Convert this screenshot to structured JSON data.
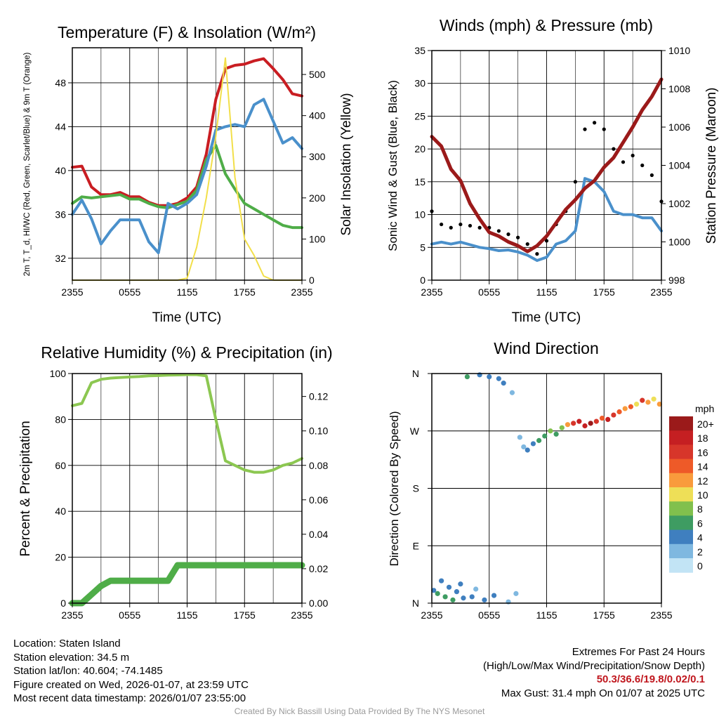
{
  "chart_data": [
    {
      "type": "line",
      "title": "Temperature (F) & Insolation (W/m²)",
      "xlabel": "Time (UTC)",
      "ylabel_left": "2m T, T_d, HI/WC (Red, Green, Scarlet/Blue) & 9m T (Orange)",
      "ylabel_right": "Solar Insolation (Yellow)",
      "x_ticks": [
        "2355",
        "0555",
        "1155",
        "1755",
        "2355"
      ],
      "y_left_ticks": [
        32,
        36,
        40,
        44,
        48
      ],
      "y_left_range": [
        30,
        51.2
      ],
      "y_right_ticks": [
        0,
        100,
        200,
        300,
        400,
        500
      ],
      "y_right_range": [
        0,
        565
      ],
      "x_hours": [
        0,
        1,
        2,
        3,
        4,
        5,
        6,
        7,
        8,
        9,
        10,
        11,
        12,
        13,
        14,
        15,
        16,
        17,
        18,
        19,
        20,
        21,
        22,
        23,
        24
      ],
      "series": [
        {
          "name": "2m Temperature",
          "color": "#c91d22",
          "axis": "left",
          "values": [
            40.3,
            40.4,
            38.5,
            37.8,
            37.8,
            38.0,
            37.6,
            37.6,
            37.1,
            36.8,
            36.8,
            37.0,
            37.5,
            38.5,
            41.5,
            46.5,
            49.3,
            49.6,
            49.7,
            50.0,
            50.2,
            49.3,
            48.3,
            47.0,
            46.8
          ]
        },
        {
          "name": "Dew Point",
          "color": "#4fad48",
          "axis": "left",
          "values": [
            37.0,
            37.6,
            37.5,
            37.6,
            37.7,
            37.8,
            37.4,
            37.4,
            37.0,
            36.7,
            36.6,
            36.9,
            37.2,
            38.2,
            41.0,
            42.3,
            39.7,
            38.3,
            37.0,
            36.5,
            36.0,
            35.5,
            35.0,
            34.8,
            34.8
          ]
        },
        {
          "name": "Heat Index / Wind Chill",
          "color": "#4a90cb",
          "axis": "left",
          "values": [
            36.0,
            37.3,
            35.6,
            33.3,
            34.5,
            35.5,
            35.5,
            35.5,
            33.5,
            32.5,
            37.0,
            36.5,
            37.0,
            37.8,
            40.4,
            43.7,
            44.0,
            44.2,
            44.0,
            46.0,
            46.5,
            44.5,
            42.5,
            43.0,
            42.0
          ]
        },
        {
          "name": "Solar Insolation",
          "color": "#f2df4a",
          "axis": "right",
          "values": [
            0,
            0,
            0,
            0,
            0,
            0,
            0,
            0,
            0,
            0,
            0,
            0,
            5,
            80,
            200,
            350,
            540,
            250,
            100,
            60,
            10,
            0,
            0,
            0,
            0
          ]
        }
      ]
    },
    {
      "type": "line",
      "title": "Winds (mph) & Pressure (mb)",
      "xlabel": "Time (UTC)",
      "ylabel_left": "Sonic Wind & Gust (Blue, Black)",
      "ylabel_right": "Station Pressure (Maroon)",
      "x_ticks": [
        "2355",
        "0555",
        "1155",
        "1755",
        "2355"
      ],
      "y_left_ticks": [
        0,
        5,
        10,
        15,
        20,
        25,
        30,
        35
      ],
      "y_left_range": [
        0,
        35
      ],
      "y_right_ticks": [
        998,
        1000,
        1002,
        1004,
        1006,
        1008,
        1010
      ],
      "y_right_range": [
        998,
        1010
      ],
      "x_hours": [
        0,
        1,
        2,
        3,
        4,
        5,
        6,
        7,
        8,
        9,
        10,
        11,
        12,
        13,
        14,
        15,
        16,
        17,
        18,
        19,
        20,
        21,
        22,
        23,
        24
      ],
      "series": [
        {
          "name": "Sonic Wind",
          "color": "#4a90cb",
          "axis": "left",
          "values": [
            5.5,
            5.8,
            5.5,
            5.8,
            5.4,
            5.0,
            4.8,
            4.5,
            4.6,
            4.3,
            3.8,
            3.0,
            3.5,
            5.5,
            6.0,
            7.5,
            15.5,
            15.0,
            13.5,
            10.5,
            10.0,
            10.0,
            9.5,
            9.5,
            7.5
          ]
        },
        {
          "name": "Gust",
          "color": "#000000",
          "axis": "left",
          "style": "points",
          "values": [
            10.5,
            8.5,
            8.0,
            8.5,
            8.3,
            8.0,
            8.0,
            7.5,
            7.0,
            6.5,
            5.5,
            4.0,
            6.0,
            8.5,
            10.5,
            15.0,
            23.0,
            24.0,
            23.0,
            20.0,
            18.0,
            19.0,
            17.5,
            16.0,
            12.0
          ]
        },
        {
          "name": "Station Pressure",
          "color": "#9b1a1a",
          "axis": "right",
          "values": [
            1005.5,
            1005.0,
            1003.8,
            1003.2,
            1002.0,
            1001.2,
            1000.5,
            1000.3,
            1000.0,
            999.8,
            999.5,
            999.8,
            1000.3,
            1001.0,
            1001.7,
            1002.2,
            1002.8,
            1003.2,
            1003.9,
            1004.4,
            1005.2,
            1006.0,
            1006.9,
            1007.6,
            1008.5
          ]
        }
      ]
    },
    {
      "type": "line",
      "title": "Relative Humidity (%) & Precipitation (in)",
      "ylabel_left": "Percent & Precipitation",
      "x_ticks": [
        "2355",
        "0555",
        "1155",
        "1755",
        "2355"
      ],
      "y_left_ticks": [
        0,
        20,
        40,
        60,
        80,
        100
      ],
      "y_left_range": [
        0,
        100
      ],
      "y_right_ticks": [
        "0.00",
        "0.02",
        "0.04",
        "0.06",
        "0.08",
        "0.10",
        "0.12"
      ],
      "y_right_range": [
        0,
        0.1333
      ],
      "x_hours": [
        0,
        1,
        2,
        3,
        4,
        5,
        6,
        7,
        8,
        9,
        10,
        11,
        12,
        13,
        14,
        15,
        16,
        17,
        18,
        19,
        20,
        21,
        22,
        23,
        24
      ],
      "series": [
        {
          "name": "Relative Humidity",
          "color": "#8cc751",
          "axis": "left",
          "values": [
            86,
            87,
            96,
            97.5,
            98,
            98.3,
            98.5,
            98.7,
            99,
            99.1,
            99.3,
            99.4,
            99.5,
            99.5,
            99,
            80,
            62,
            60,
            58,
            57,
            57,
            58,
            60,
            61,
            63
          ]
        },
        {
          "name": "Precipitation",
          "color": "#4fad48",
          "axis": "right",
          "values": [
            0.0,
            0.0,
            0.005,
            0.01,
            0.013,
            0.013,
            0.013,
            0.013,
            0.013,
            0.013,
            0.013,
            0.022,
            0.022,
            0.022,
            0.022,
            0.022,
            0.022,
            0.022,
            0.022,
            0.022,
            0.022,
            0.022,
            0.022,
            0.022,
            0.022
          ]
        }
      ]
    },
    {
      "type": "scatter",
      "title": "Wind Direction",
      "ylabel": "Direction (Colored By Speed)",
      "x_ticks": [
        "2355",
        "0555",
        "1155",
        "1755",
        "2355"
      ],
      "y_ticks": [
        "N",
        "E",
        "S",
        "W",
        "N"
      ],
      "y_range_degrees": [
        0,
        360
      ],
      "colorbar": {
        "unit": "mph",
        "labels": [
          "20+",
          "18",
          "16",
          "14",
          "12",
          "10",
          "8",
          "6",
          "4",
          "2",
          "0"
        ],
        "colors": [
          "#9b1a1a",
          "#c51f22",
          "#d7362a",
          "#ee5a28",
          "#f99b3c",
          "#eedf57",
          "#81c04d",
          "#3e9c62",
          "#3f7fbf",
          "#7fb8e0",
          "#c2e4f5"
        ]
      },
      "points": [
        {
          "t": 0.2,
          "dir": 20,
          "spd": 4
        },
        {
          "t": 0.6,
          "dir": 15,
          "spd": 6
        },
        {
          "t": 1.0,
          "dir": 35,
          "spd": 4
        },
        {
          "t": 1.4,
          "dir": 10,
          "spd": 5
        },
        {
          "t": 1.8,
          "dir": 25,
          "spd": 3
        },
        {
          "t": 2.2,
          "dir": 5,
          "spd": 6
        },
        {
          "t": 2.6,
          "dir": 18,
          "spd": 4
        },
        {
          "t": 3.0,
          "dir": 30,
          "spd": 3
        },
        {
          "t": 3.3,
          "dir": 8,
          "spd": 4
        },
        {
          "t": 3.7,
          "dir": 355,
          "spd": 5
        },
        {
          "t": 4.2,
          "dir": 10,
          "spd": 3
        },
        {
          "t": 4.6,
          "dir": 22,
          "spd": 2
        },
        {
          "t": 5.0,
          "dir": 358,
          "spd": 3
        },
        {
          "t": 5.5,
          "dir": 5,
          "spd": 4
        },
        {
          "t": 6.0,
          "dir": 355,
          "spd": 4
        },
        {
          "t": 6.5,
          "dir": 12,
          "spd": 3
        },
        {
          "t": 7.0,
          "dir": 352,
          "spd": 4
        },
        {
          "t": 7.5,
          "dir": 345,
          "spd": 3
        },
        {
          "t": 8.0,
          "dir": 2,
          "spd": 2
        },
        {
          "t": 8.4,
          "dir": 330,
          "spd": 2
        },
        {
          "t": 8.8,
          "dir": 15,
          "spd": 1
        },
        {
          "t": 9.2,
          "dir": 260,
          "spd": 2
        },
        {
          "t": 9.6,
          "dir": 245,
          "spd": 2
        },
        {
          "t": 10.0,
          "dir": 240,
          "spd": 3
        },
        {
          "t": 10.6,
          "dir": 250,
          "spd": 4
        },
        {
          "t": 11.2,
          "dir": 255,
          "spd": 5
        },
        {
          "t": 11.8,
          "dir": 262,
          "spd": 5
        },
        {
          "t": 12.4,
          "dir": 270,
          "spd": 8
        },
        {
          "t": 13.0,
          "dir": 265,
          "spd": 6
        },
        {
          "t": 13.6,
          "dir": 275,
          "spd": 7
        },
        {
          "t": 14.2,
          "dir": 280,
          "spd": 11
        },
        {
          "t": 14.8,
          "dir": 282,
          "spd": 15
        },
        {
          "t": 15.4,
          "dir": 285,
          "spd": 17
        },
        {
          "t": 16.0,
          "dir": 278,
          "spd": 18
        },
        {
          "t": 16.6,
          "dir": 282,
          "spd": 19
        },
        {
          "t": 17.2,
          "dir": 285,
          "spd": 15
        },
        {
          "t": 17.8,
          "dir": 290,
          "spd": 14
        },
        {
          "t": 18.4,
          "dir": 288,
          "spd": 17
        },
        {
          "t": 19.0,
          "dir": 295,
          "spd": 16
        },
        {
          "t": 19.6,
          "dir": 300,
          "spd": 13
        },
        {
          "t": 20.2,
          "dir": 305,
          "spd": 12
        },
        {
          "t": 20.8,
          "dir": 308,
          "spd": 14
        },
        {
          "t": 21.4,
          "dir": 312,
          "spd": 10
        },
        {
          "t": 22.0,
          "dir": 318,
          "spd": 15
        },
        {
          "t": 22.6,
          "dir": 315,
          "spd": 11
        },
        {
          "t": 23.2,
          "dir": 320,
          "spd": 10
        },
        {
          "t": 23.8,
          "dir": 312,
          "spd": 12
        }
      ]
    }
  ],
  "info": {
    "location": "Location: Staten Island",
    "elevation": "Station elevation: 34.5 m",
    "latlon": "Station lat/lon: 40.604; -74.1485",
    "created": "Figure created on Wed, 2026-01-07, at 23:59 UTC",
    "recent": "Most recent data timestamp: 2026/01/07 23:55:00",
    "extremes_title": "Extremes For Past 24 Hours",
    "extremes_legend": "(High/Low/Max Wind/Precipitation/Snow Depth)",
    "extremes_values": "50.3/36.6/19.8/0.02/0.1",
    "max_gust": "Max Gust: 31.4 mph On 01/07 at 2025 UTC",
    "credit": "Created By Nick Bassill Using Data Provided By The NYS Mesonet"
  }
}
